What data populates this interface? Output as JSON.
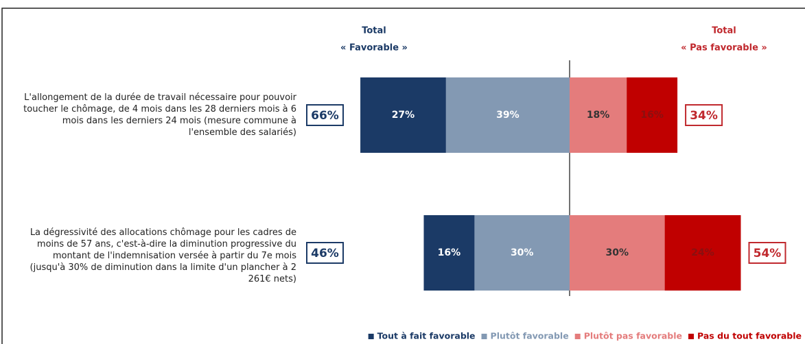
{
  "chart_data": {
    "type": "diverging_bar",
    "categories": [
      "L'allongement de la durée de travail nécessaire pour pouvoir toucher le chômage, de 4 mois dans les 28 derniers mois à 6 mois dans les derniers 24 mois (mesure commune à l'ensemble des salariés)",
      "La dégressivité des allocations chômage pour les cadres de moins de 57 ans, c'est-à-dire la diminution progressive du montant de l'indemnisation versée à partir du 7e mois (jusqu'à 30% de diminution dans la limite d'un plancher à 2 261€ nets)"
    ],
    "series": [
      {
        "name": "Tout à fait favorable",
        "color": "#1b3a66",
        "label_color": "#ffffff",
        "side": "favorable",
        "values": [
          27,
          16
        ],
        "value_labels": [
          "27%",
          "16%"
        ]
      },
      {
        "name": "Plutôt favorable",
        "color": "#8399b3",
        "label_color": "#ffffff",
        "side": "favorable",
        "values": [
          39,
          30
        ],
        "value_labels": [
          "39%",
          "30%"
        ]
      },
      {
        "name": "Plutôt pas favorable",
        "color": "#e47c7c",
        "label_color": "#333333",
        "side": "unfavorable",
        "values": [
          18,
          30
        ],
        "value_labels": [
          "18%",
          "30%"
        ]
      },
      {
        "name": "Pas du tout favorable",
        "color": "#c00000",
        "label_color": "#8a1010",
        "side": "unfavorable",
        "values": [
          16,
          24
        ],
        "value_labels": [
          "16%",
          "24%"
        ]
      }
    ],
    "totals": [
      {
        "header": [
          "Total",
          "« Favorable »"
        ],
        "color": "#1b3a66",
        "side": "favorable",
        "values": [
          66,
          46
        ],
        "value_labels": [
          "66%",
          "46%"
        ]
      },
      {
        "header": [
          "Total",
          "« Pas favorable »"
        ],
        "color": "#c0282d",
        "side": "unfavorable",
        "values": [
          34,
          54
        ],
        "value_labels": [
          "34%",
          "54%"
        ]
      }
    ]
  }
}
